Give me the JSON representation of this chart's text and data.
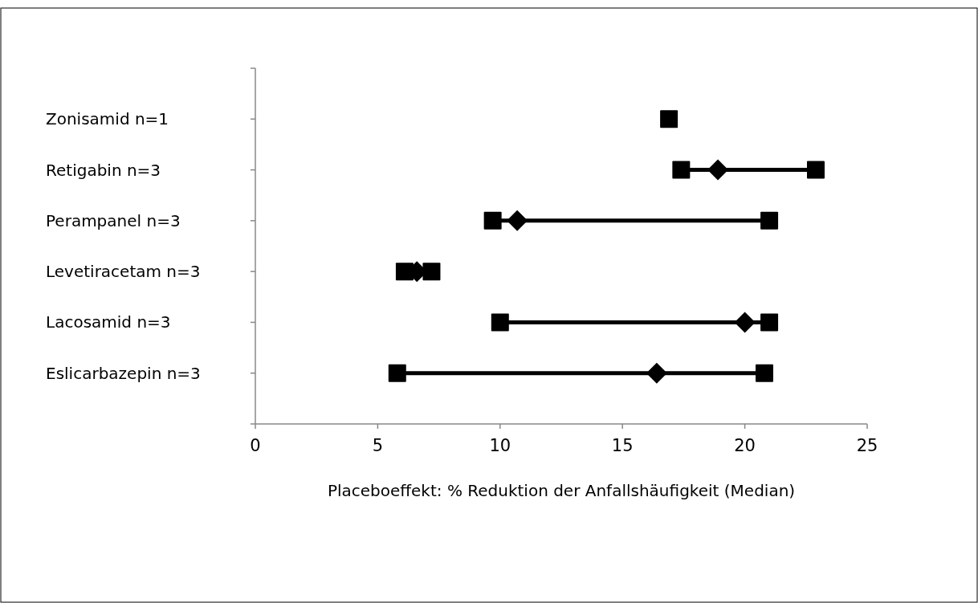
{
  "chart_data": {
    "type": "scatter",
    "orientation": "horizontal",
    "xlabel": "Placeboeffekt: % Reduktion der Anfallshäufigkeit (Median)",
    "categories": [
      "Zonisamid n=1",
      "Retigabin n=3",
      "Perampanel n=3",
      "Levetiracetam n=3",
      "Lacosamid n=3",
      "Eslicarbazepin n=3"
    ],
    "series": [
      {
        "color": "#000000",
        "marker": "square",
        "values": [
          16.9,
          17.4,
          9.7,
          6.1,
          10.0,
          5.8
        ]
      },
      {
        "color": "#000000",
        "marker": "diamond",
        "values": [
          null,
          18.9,
          10.7,
          6.6,
          20.0,
          16.4
        ]
      },
      {
        "color": "#000000",
        "marker": "square",
        "values": [
          null,
          22.9,
          21.0,
          7.2,
          21.0,
          20.8
        ]
      }
    ],
    "xlim": [
      0,
      25
    ],
    "xticks": [
      0,
      5,
      10,
      15,
      20,
      25
    ],
    "grid": false
  }
}
